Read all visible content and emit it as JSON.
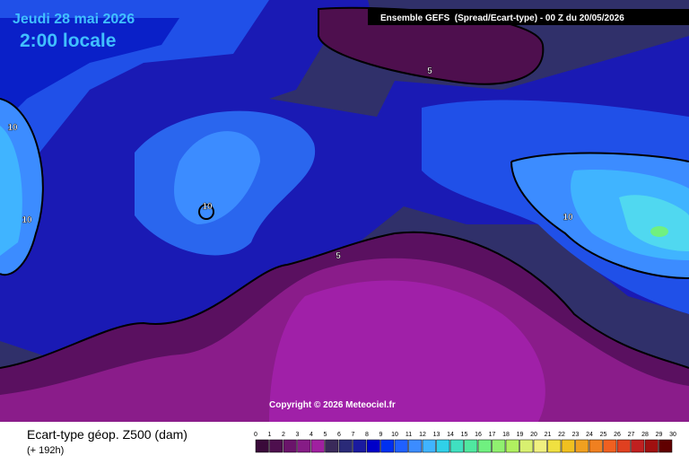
{
  "header": {
    "date": "Jeudi 28 mai 2026",
    "time": "2:00 locale",
    "model": "Ensemble GEFS  (Spread/Ecart-type) - 00 Z du 20/05/2026"
  },
  "map": {
    "contour_labels": [
      "5",
      "5",
      "10",
      "10",
      "10",
      "10"
    ],
    "copyright": "Copyright © 2026 Meteociel.fr"
  },
  "footer": {
    "title": "Ecart-type géop. Z500 (dam)",
    "lead": "(+ 192h)"
  },
  "colorbar": {
    "ticks": [
      0,
      1,
      2,
      3,
      4,
      5,
      6,
      7,
      8,
      9,
      10,
      11,
      12,
      13,
      14,
      15,
      16,
      17,
      18,
      19,
      20,
      21,
      22,
      23,
      24,
      25,
      26,
      27,
      28,
      29,
      30
    ],
    "colors": [
      "#3a0a3a",
      "#4e0f4e",
      "#6a146a",
      "#861c86",
      "#a020a0",
      "#3a2a5a",
      "#2a2a78",
      "#1a1aa0",
      "#0000c8",
      "#0030f0",
      "#2060ff",
      "#3c8cff",
      "#40b4ff",
      "#30d0e8",
      "#40e0c0",
      "#50e8a0",
      "#70f080",
      "#90f070",
      "#b0f060",
      "#d8f070",
      "#f0f080",
      "#f0e040",
      "#f0c020",
      "#f0a020",
      "#f08020",
      "#f06020",
      "#e04020",
      "#c02020",
      "#a01010",
      "#600000"
    ]
  }
}
